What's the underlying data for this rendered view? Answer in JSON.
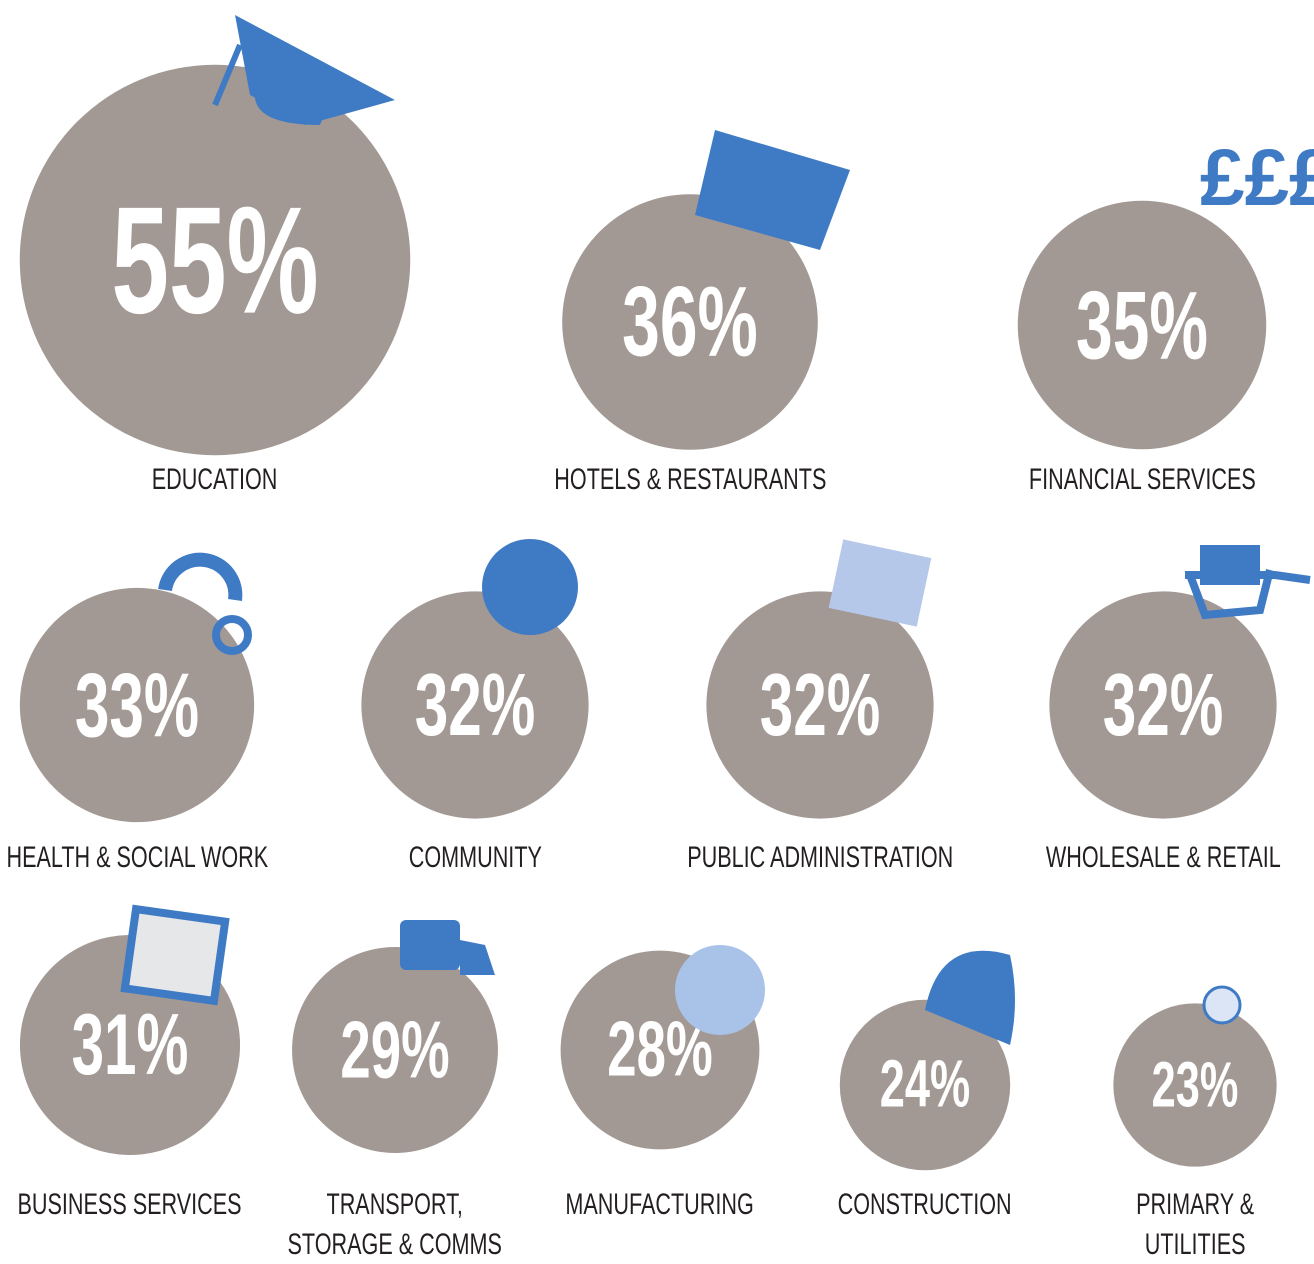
{
  "chart_data": {
    "type": "bubble",
    "color": "#a39994",
    "categories": [
      "EDUCATION",
      "HOTELS & RESTAURANTS",
      "FINANCIAL SERVICES",
      "HEALTH & SOCIAL WORK",
      "COMMUNITY",
      "PUBLIC ADMINISTRATION",
      "WHOLESALE & RETAIL",
      "BUSINESS SERVICES",
      "TRANSPORT, STORAGE & COMMS",
      "MANUFACTURING",
      "CONSTRUCTION",
      "PRIMARY & UTILITIES"
    ],
    "values": [
      55,
      36,
      35,
      33,
      32,
      32,
      32,
      31,
      29,
      28,
      24,
      23
    ],
    "value_labels": [
      "55%",
      "36%",
      "35%",
      "33%",
      "32%",
      "32%",
      "32%",
      "31%",
      "29%",
      "28%",
      "24%",
      "23%"
    ]
  }
}
